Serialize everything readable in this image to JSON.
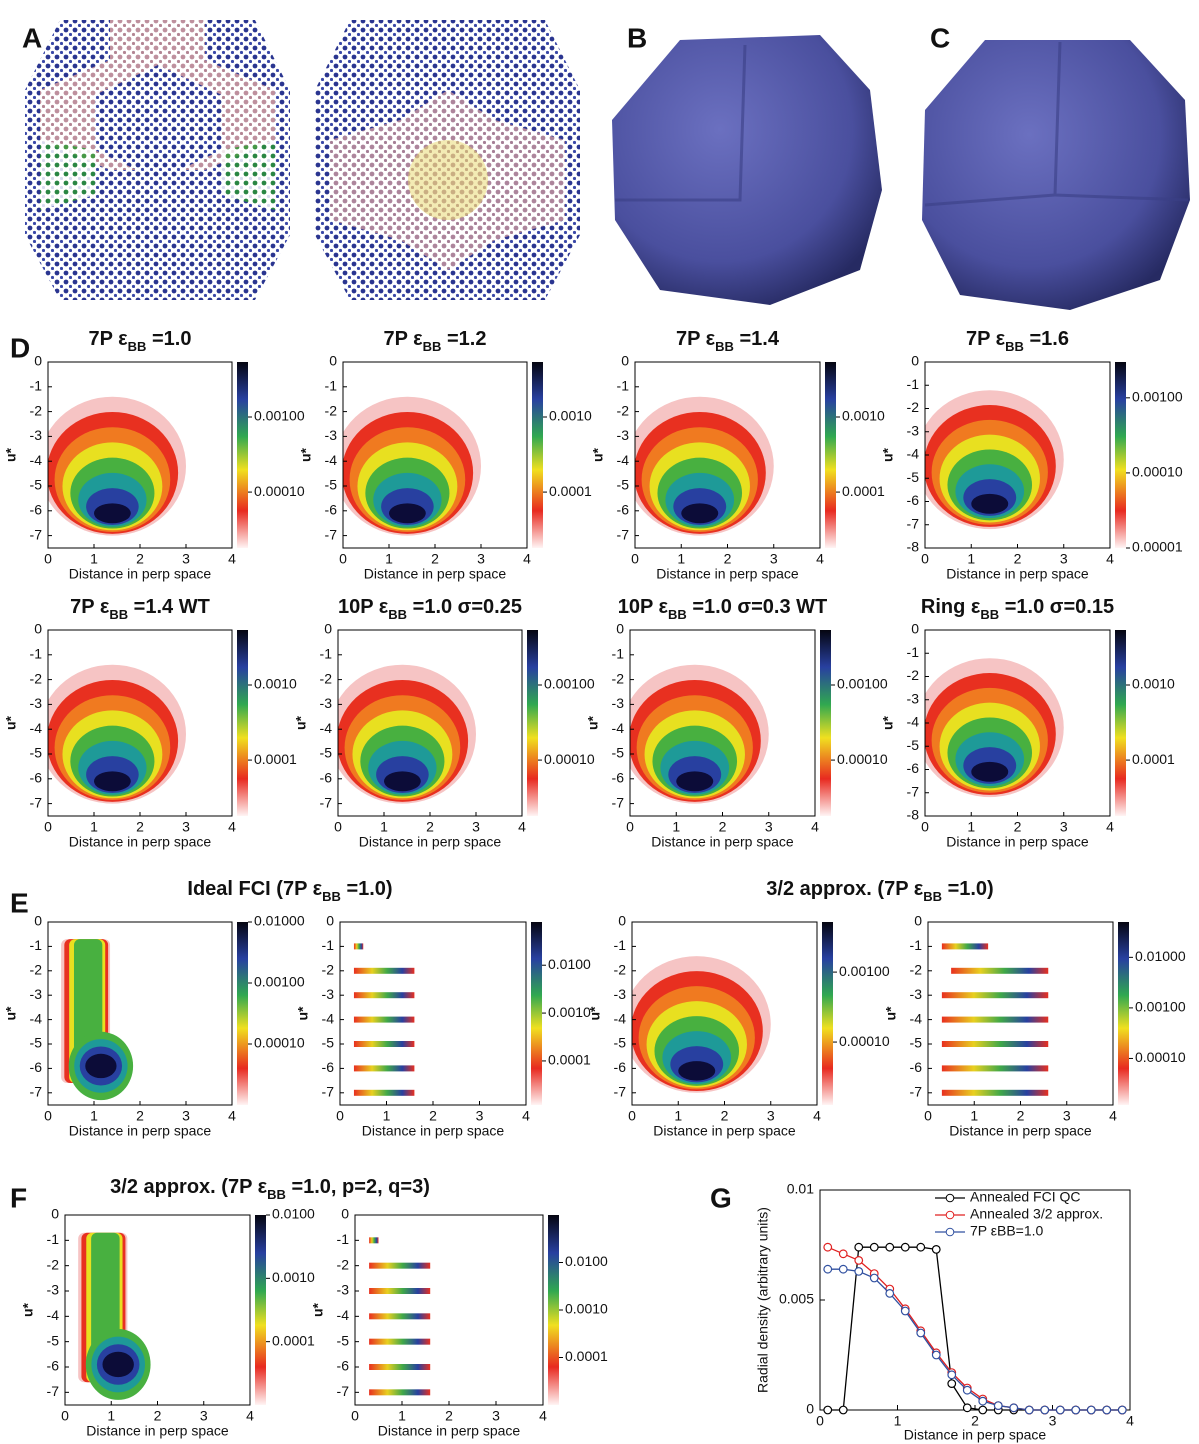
{
  "panels": {
    "labels": [
      "A",
      "B",
      "C",
      "D",
      "E",
      "F",
      "G"
    ]
  },
  "section_titles": [
    [
      "Ideal FCI (7P ε",
      "BB",
      " =1.0)"
    ],
    [
      "3/2 approx. (7P ε",
      "BB",
      " =1.0)"
    ],
    [
      "3/2 approx. (7P ε",
      "BB",
      " =1.0, p=2, q=3)"
    ]
  ],
  "chart_data": [
    {
      "type": "heatmap",
      "title": [
        "7P ε",
        "BB",
        " =1.0"
      ],
      "xlabel": "Distance in perp space",
      "ylabel": "u*",
      "xlim": [
        0,
        4
      ],
      "ylim": [
        -7.5,
        0
      ],
      "xticks": [
        0,
        1,
        2,
        3,
        4
      ],
      "yticks": [
        0,
        -1,
        -2,
        -3,
        -4,
        -5,
        -6,
        -7
      ],
      "clim": [
        1.8e-05,
        0.0054
      ],
      "cticks": [
        {
          "value": 0.001,
          "label": "0.00100"
        },
        {
          "value": 0.0001,
          "label": "0.00010"
        }
      ]
    },
    {
      "type": "heatmap",
      "title": [
        "7P ε",
        "BB",
        " =1.2"
      ],
      "xlabel": "Distance in perp space",
      "ylabel": "u*",
      "xlim": [
        0,
        4
      ],
      "ylim": [
        -7.5,
        0
      ],
      "xticks": [
        0,
        1,
        2,
        3,
        4
      ],
      "yticks": [
        0,
        -1,
        -2,
        -3,
        -4,
        -5,
        -6,
        -7
      ],
      "clim": [
        1.8e-05,
        0.0054
      ],
      "cticks": [
        {
          "value": 0.001,
          "label": "0.0010"
        },
        {
          "value": 0.0001,
          "label": "0.0001"
        }
      ]
    },
    {
      "type": "heatmap",
      "title": [
        "7P ε",
        "BB",
        " =1.4"
      ],
      "xlabel": "Distance in perp space",
      "ylabel": "u*",
      "xlim": [
        0,
        4
      ],
      "ylim": [
        -7.5,
        0
      ],
      "xticks": [
        0,
        1,
        2,
        3,
        4
      ],
      "yticks": [
        0,
        -1,
        -2,
        -3,
        -4,
        -5,
        -6,
        -7
      ],
      "clim": [
        1.8e-05,
        0.0054
      ],
      "cticks": [
        {
          "value": 0.001,
          "label": "0.0010"
        },
        {
          "value": 0.0001,
          "label": "0.0001"
        }
      ]
    },
    {
      "type": "heatmap",
      "title": [
        "7P ε",
        "BB",
        " =1.6"
      ],
      "xlabel": "Distance in perp space",
      "ylabel": "u*",
      "xlim": [
        0,
        4
      ],
      "ylim": [
        -8,
        0
      ],
      "xticks": [
        0,
        1,
        2,
        3,
        4
      ],
      "yticks": [
        0,
        -1,
        -2,
        -3,
        -4,
        -5,
        -6,
        -7,
        -8
      ],
      "clim": [
        1e-05,
        0.003
      ],
      "cticks": [
        {
          "value": 0.001,
          "label": "0.00100"
        },
        {
          "value": 0.0001,
          "label": "0.00010"
        },
        {
          "value": 1e-05,
          "label": "0.00001"
        }
      ]
    },
    {
      "type": "heatmap",
      "title": [
        "7P ε",
        "BB",
        " =1.4 WT"
      ],
      "xlabel": "Distance in perp space",
      "ylabel": "u*",
      "xlim": [
        0,
        4
      ],
      "ylim": [
        -7.5,
        0
      ],
      "xticks": [
        0,
        1,
        2,
        3,
        4
      ],
      "yticks": [
        0,
        -1,
        -2,
        -3,
        -4,
        -5,
        -6,
        -7
      ],
      "clim": [
        1.8e-05,
        0.0054
      ],
      "cticks": [
        {
          "value": 0.001,
          "label": "0.0010"
        },
        {
          "value": 0.0001,
          "label": "0.0001"
        }
      ]
    },
    {
      "type": "heatmap",
      "title": [
        "10P ε",
        "BB",
        " =1.0 σ=0.25"
      ],
      "xlabel": "Distance in perp space",
      "ylabel": "u*",
      "xlim": [
        0,
        4
      ],
      "ylim": [
        -7.5,
        0
      ],
      "xticks": [
        0,
        1,
        2,
        3,
        4
      ],
      "yticks": [
        0,
        -1,
        -2,
        -3,
        -4,
        -5,
        -6,
        -7
      ],
      "clim": [
        1.8e-05,
        0.0054
      ],
      "cticks": [
        {
          "value": 0.001,
          "label": "0.00100"
        },
        {
          "value": 0.0001,
          "label": "0.00010"
        }
      ]
    },
    {
      "type": "heatmap",
      "title": [
        "10P ε",
        "BB",
        " =1.0 σ=0.3 WT"
      ],
      "xlabel": "Distance in perp space",
      "ylabel": "u*",
      "xlim": [
        0,
        4
      ],
      "ylim": [
        -7.5,
        0
      ],
      "xticks": [
        0,
        1,
        2,
        3,
        4
      ],
      "yticks": [
        0,
        -1,
        -2,
        -3,
        -4,
        -5,
        -6,
        -7
      ],
      "clim": [
        1.8e-05,
        0.0054
      ],
      "cticks": [
        {
          "value": 0.001,
          "label": "0.00100"
        },
        {
          "value": 0.0001,
          "label": "0.00010"
        }
      ]
    },
    {
      "type": "heatmap",
      "title": [
        "Ring ε",
        "BB",
        " =1.0 σ=0.15"
      ],
      "xlabel": "Distance in perp space",
      "ylabel": "u*",
      "xlim": [
        0,
        4
      ],
      "ylim": [
        -8,
        0
      ],
      "xticks": [
        0,
        1,
        2,
        3,
        4
      ],
      "yticks": [
        0,
        -1,
        -2,
        -3,
        -4,
        -5,
        -6,
        -7,
        -8
      ],
      "clim": [
        1.8e-05,
        0.0054
      ],
      "cticks": [
        {
          "value": 0.001,
          "label": "0.0010"
        },
        {
          "value": 0.0001,
          "label": "0.0001"
        }
      ]
    },
    {
      "type": "heatmap",
      "xlabel": "Distance in perp space",
      "ylabel": "u*",
      "xlim": [
        0,
        4
      ],
      "ylim": [
        -7.5,
        0
      ],
      "xticks": [
        0,
        1,
        2,
        3,
        4
      ],
      "yticks": [
        0,
        -1,
        -2,
        -3,
        -4,
        -5,
        -6,
        -7
      ],
      "clim": [
        1e-05,
        0.01
      ],
      "cticks": [
        {
          "value": 0.01,
          "label": "0.01000"
        },
        {
          "value": 0.001,
          "label": "0.00100"
        },
        {
          "value": 0.0001,
          "label": "0.00010"
        }
      ]
    },
    {
      "type": "heatmap",
      "xlabel": "Distance in perp space",
      "ylabel": "u*",
      "xlim": [
        0,
        4
      ],
      "ylim": [
        -7.5,
        0
      ],
      "xticks": [
        0,
        1,
        2,
        3,
        4
      ],
      "yticks": [
        0,
        -1,
        -2,
        -3,
        -4,
        -5,
        -6,
        -7
      ],
      "clim": [
        1.2e-05,
        0.08
      ],
      "cticks": [
        {
          "value": 0.01,
          "label": "0.0100"
        },
        {
          "value": 0.001,
          "label": "0.0010"
        },
        {
          "value": 0.0001,
          "label": "0.0001"
        }
      ]
    },
    {
      "type": "heatmap",
      "xlabel": "Distance in perp space",
      "ylabel": "u*",
      "xlim": [
        0,
        4
      ],
      "ylim": [
        -7.5,
        0
      ],
      "xticks": [
        0,
        1,
        2,
        3,
        4
      ],
      "yticks": [
        0,
        -1,
        -2,
        -3,
        -4,
        -5,
        -6,
        -7
      ],
      "clim": [
        1.26e-05,
        0.0052
      ],
      "cticks": [
        {
          "value": 0.001,
          "label": "0.00100"
        },
        {
          "value": 0.0001,
          "label": "0.00010"
        }
      ]
    },
    {
      "type": "heatmap",
      "xlabel": "Distance in perp space",
      "ylabel": "u*",
      "xlim": [
        0,
        4
      ],
      "ylim": [
        -7.5,
        0
      ],
      "xticks": [
        0,
        1,
        2,
        3,
        4
      ],
      "yticks": [
        0,
        -1,
        -2,
        -3,
        -4,
        -5,
        -6,
        -7
      ],
      "clim": [
        1.2e-05,
        0.05
      ],
      "cticks": [
        {
          "value": 0.01,
          "label": "0.01000"
        },
        {
          "value": 0.001,
          "label": "0.00100"
        },
        {
          "value": 0.0001,
          "label": "0.00010"
        }
      ]
    },
    {
      "type": "heatmap",
      "xlabel": "Distance in perp space",
      "ylabel": "u*",
      "xlim": [
        0,
        4
      ],
      "ylim": [
        -7.5,
        0
      ],
      "xticks": [
        0,
        1,
        2,
        3,
        4
      ],
      "yticks": [
        0,
        -1,
        -2,
        -3,
        -4,
        -5,
        -6,
        -7
      ],
      "clim": [
        1e-05,
        0.01
      ],
      "cticks": [
        {
          "value": 0.01,
          "label": "0.0100"
        },
        {
          "value": 0.001,
          "label": "0.0010"
        },
        {
          "value": 0.0001,
          "label": "0.0001"
        }
      ]
    },
    {
      "type": "heatmap",
      "xlabel": "Distance in perp space",
      "ylabel": "u*",
      "xlim": [
        0,
        4
      ],
      "ylim": [
        -7.5,
        0
      ],
      "xticks": [
        0,
        1,
        2,
        3,
        4
      ],
      "yticks": [
        0,
        -1,
        -2,
        -3,
        -4,
        -5,
        -6,
        -7
      ],
      "clim": [
        1e-05,
        0.1
      ],
      "cticks": [
        {
          "value": 0.01,
          "label": "0.0100"
        },
        {
          "value": 0.001,
          "label": "0.0010"
        },
        {
          "value": 0.0001,
          "label": "0.0001"
        }
      ]
    },
    {
      "type": "line",
      "xlabel": "Distance in perp space",
      "ylabel": "Radial density (arbitrary units)",
      "xlim": [
        0,
        4
      ],
      "ylim": [
        0,
        0.01
      ],
      "xticks": [
        0,
        1,
        2,
        3,
        4
      ],
      "yticks": [
        0,
        0.005,
        0.01
      ],
      "x": [
        0.1,
        0.3,
        0.5,
        0.7,
        0.9,
        1.1,
        1.3,
        1.5,
        1.7,
        1.9,
        2.1,
        2.3,
        2.5,
        2.7,
        2.9,
        3.1,
        3.3,
        3.5,
        3.7,
        3.9
      ],
      "series": [
        {
          "name": "Annealed FCI QC",
          "color": "#000000",
          "values": [
            0,
            0,
            0.0074,
            0.0074,
            0.0074,
            0.0074,
            0.0074,
            0.0073,
            0.0012,
            0.0001,
            0,
            0,
            0,
            0,
            0,
            0,
            0,
            0,
            0,
            0
          ]
        },
        {
          "name": "Annealed 3/2 approx.",
          "color": "#e02020",
          "values": [
            0.0074,
            0.0071,
            0.0068,
            0.0062,
            0.0055,
            0.0046,
            0.0036,
            0.0026,
            0.0017,
            0.001,
            0.0005,
            0.0002,
            0.0001,
            0,
            0,
            0,
            0,
            0,
            0,
            0
          ]
        },
        {
          "name": "7P εBB=1.0",
          "color": "#3050a0",
          "values": [
            0.0064,
            0.0064,
            0.0063,
            0.006,
            0.0053,
            0.0045,
            0.0035,
            0.0025,
            0.0016,
            0.0009,
            0.0004,
            0.0002,
            0.0001,
            0,
            0,
            0,
            0,
            0,
            0,
            0
          ]
        }
      ]
    }
  ]
}
